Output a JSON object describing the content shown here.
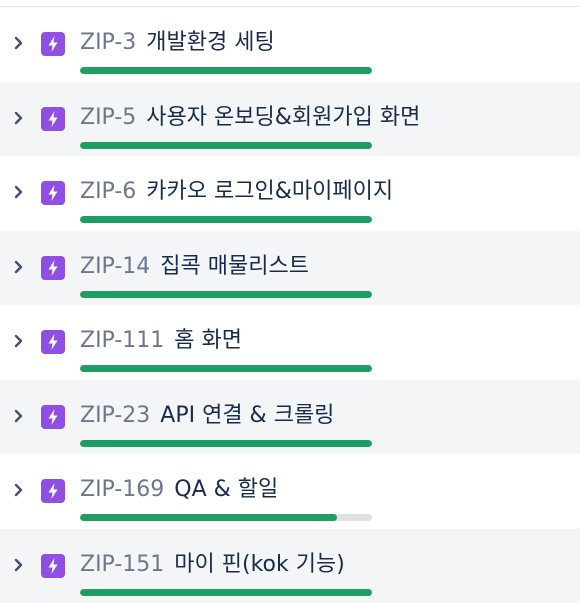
{
  "colors": {
    "epic_icon": "#904ee2",
    "progress_done": "#1f9d63",
    "progress_remaining": "#dfe1e6",
    "key_text": "#6b778c",
    "title_text": "#172b4d",
    "alt_row": "#f4f5f7"
  },
  "epics": [
    {
      "key": "ZIP-3",
      "title": "개발환경 세팅",
      "progress": 1.0
    },
    {
      "key": "ZIP-5",
      "title": "사용자 온보딩&회원가입 화면",
      "progress": 1.0
    },
    {
      "key": "ZIP-6",
      "title": "카카오 로그인&마이페이지",
      "progress": 1.0
    },
    {
      "key": "ZIP-14",
      "title": "집콕 매물리스트",
      "progress": 1.0
    },
    {
      "key": "ZIP-111",
      "title": "홈 화면",
      "progress": 1.0
    },
    {
      "key": "ZIP-23",
      "title": "API 연결 & 크롤링",
      "progress": 1.0
    },
    {
      "key": "ZIP-169",
      "title": "QA & 할일",
      "progress": 0.88
    },
    {
      "key": "ZIP-151",
      "title": "마이 핀(kok 기능)",
      "progress": 1.0
    }
  ]
}
